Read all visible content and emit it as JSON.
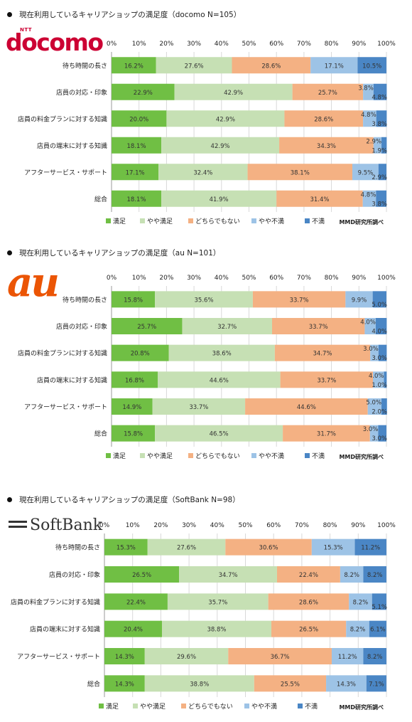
{
  "sections": [
    {
      "title": "現在利用しているキャリアショップの満足度（docomo N=105）",
      "logo": {
        "small": "NTT",
        "text": "docomo",
        "color": "#cc0033"
      }
    },
    {
      "title": "現在利用しているキャリアショップの満足度（au N=101）",
      "logo": {
        "text": "au",
        "color": "#eb5505"
      }
    },
    {
      "title": "現在利用しているキャリアショップの満足度（SoftBank N=98）",
      "logo": {
        "text": "SoftBank",
        "color": "#333333"
      }
    }
  ],
  "colors": {
    "satisfied": "#70bf44",
    "somewhat_satisfied": "#c6e0b4",
    "neutral": "#f4b183",
    "somewhat_dissatisfied": "#9dc3e6",
    "dissatisfied": "#4a86c5"
  },
  "chart_data": [
    {
      "type": "bar",
      "orientation": "horizontal-stacked-100",
      "title": "現在利用しているキャリアショップの満足度（docomo N=105）",
      "categories": [
        "待ち時間の長さ",
        "店員の対応・印象",
        "店員の料金プランに対する知識",
        "店員の端末に対する知識",
        "アフターサービス・サポート",
        "総合"
      ],
      "xticks": [
        "0%",
        "10%",
        "20%",
        "30%",
        "40%",
        "50%",
        "60%",
        "70%",
        "80%",
        "90%",
        "100%"
      ],
      "xlim": [
        0,
        100
      ],
      "grid": true,
      "legend_position": "bottom",
      "source": "MMD研究所調べ",
      "series": [
        {
          "name": "満足",
          "values": [
            16.2,
            22.9,
            20.0,
            18.1,
            17.1,
            18.1
          ]
        },
        {
          "name": "やや満足",
          "values": [
            27.6,
            42.9,
            42.9,
            42.9,
            32.4,
            41.9
          ]
        },
        {
          "name": "どちらでもない",
          "values": [
            28.6,
            25.7,
            28.6,
            34.3,
            38.1,
            31.4
          ]
        },
        {
          "name": "やや不満",
          "values": [
            17.1,
            3.8,
            4.8,
            2.9,
            9.5,
            4.8
          ]
        },
        {
          "name": "不満",
          "values": [
            10.5,
            4.8,
            3.8,
            1.9,
            2.9,
            3.8
          ]
        }
      ]
    },
    {
      "type": "bar",
      "orientation": "horizontal-stacked-100",
      "title": "現在利用しているキャリアショップの満足度（au N=101）",
      "categories": [
        "待ち時間の長さ",
        "店員の対応・印象",
        "店員の料金プランに対する知識",
        "店員の端末に対する知識",
        "アフターサービス・サポート",
        "総合"
      ],
      "xticks": [
        "0%",
        "10%",
        "20%",
        "30%",
        "40%",
        "50%",
        "60%",
        "70%",
        "80%",
        "90%",
        "100%"
      ],
      "xlim": [
        0,
        100
      ],
      "grid": true,
      "legend_position": "bottom",
      "source": "MMD研究所調べ",
      "series": [
        {
          "name": "満足",
          "values": [
            15.8,
            25.7,
            20.8,
            16.8,
            14.9,
            15.8
          ]
        },
        {
          "name": "やや満足",
          "values": [
            35.6,
            32.7,
            38.6,
            44.6,
            33.7,
            46.5
          ]
        },
        {
          "name": "どちらでもない",
          "values": [
            33.7,
            33.7,
            34.7,
            33.7,
            44.6,
            31.7
          ]
        },
        {
          "name": "やや不満",
          "values": [
            9.9,
            4.0,
            3.0,
            4.0,
            5.0,
            3.0
          ]
        },
        {
          "name": "不満",
          "values": [
            5.0,
            4.0,
            3.0,
            1.0,
            2.0,
            3.0
          ]
        }
      ]
    },
    {
      "type": "bar",
      "orientation": "horizontal-stacked-100",
      "title": "現在利用しているキャリアショップの満足度（SoftBank N=98）",
      "categories": [
        "待ち時間の長さ",
        "店員の対応・印象",
        "店員の料金プランに対する知識",
        "店員の端末に対する知識",
        "アフターサービス・サポート",
        "総合"
      ],
      "xticks": [
        "0%",
        "10%",
        "20%",
        "30%",
        "40%",
        "50%",
        "60%",
        "70%",
        "80%",
        "90%",
        "100%"
      ],
      "xlim": [
        0,
        100
      ],
      "grid": true,
      "legend_position": "bottom",
      "source": "MMD研究所調べ",
      "series": [
        {
          "name": "満足",
          "values": [
            15.3,
            26.5,
            22.4,
            20.4,
            14.3,
            14.3
          ]
        },
        {
          "name": "やや満足",
          "values": [
            27.6,
            34.7,
            35.7,
            38.8,
            29.6,
            38.8
          ]
        },
        {
          "name": "どちらでもない",
          "values": [
            30.6,
            22.4,
            28.6,
            26.5,
            36.7,
            25.5
          ]
        },
        {
          "name": "やや不満",
          "values": [
            15.3,
            8.2,
            8.2,
            8.2,
            11.2,
            14.3
          ]
        },
        {
          "name": "不満",
          "values": [
            11.2,
            8.2,
            5.1,
            6.1,
            8.2,
            7.1
          ]
        }
      ]
    }
  ]
}
